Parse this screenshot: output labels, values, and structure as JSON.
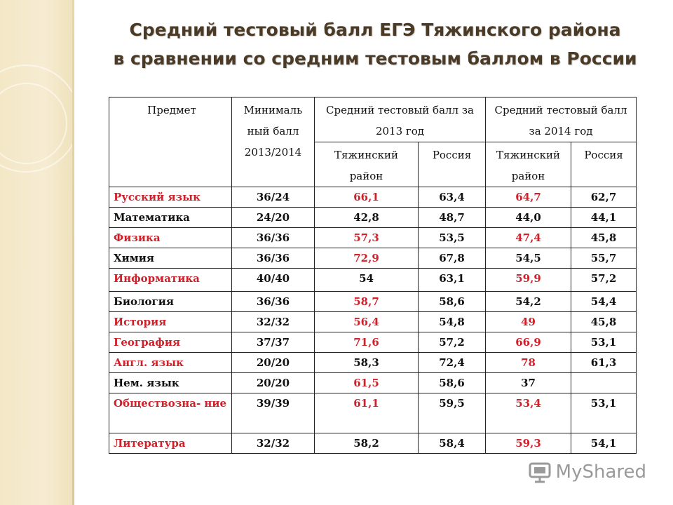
{
  "slide": {
    "title_line1": "Средний тестовый балл ЕГЭ Тяжинского района",
    "title_line2": "в сравнении со средним тестовым баллом в России"
  },
  "table": {
    "headers": {
      "subject": "Предмет",
      "minscore": "Минималь ный балл 2013/2014",
      "group2013": "Средний тестовый балл за 2013 год",
      "group2014": "Средний тестовый балл за 2014 год",
      "district": "Тяжинский район",
      "russia": "Россия"
    },
    "rows": [
      {
        "subject": "Русский язык",
        "min": "36/24",
        "d2013": "66,1",
        "r2013": "63,4",
        "d2014": "64,7",
        "r2014": "62,7",
        "subj_red": true,
        "d2013_red": true,
        "d2014_red": true
      },
      {
        "subject": "Математика",
        "min": "24/20",
        "d2013": "42,8",
        "r2013": "48,7",
        "d2014": "44,0",
        "r2014": "44,1",
        "subj_red": false,
        "d2013_red": false,
        "d2014_red": false
      },
      {
        "subject": "Физика",
        "min": "36/36",
        "d2013": "57,3",
        "r2013": "53,5",
        "d2014": "47,4",
        "r2014": "45,8",
        "subj_red": true,
        "d2013_red": true,
        "d2014_red": true
      },
      {
        "subject": "Химия",
        "min": "36/36",
        "d2013": "72,9",
        "r2013": "67,8",
        "d2014": "54,5",
        "r2014": "55,7",
        "subj_red": false,
        "d2013_red": true,
        "d2014_red": false
      },
      {
        "subject": "Информатика",
        "min": "40/40",
        "d2013": "54",
        "r2013": "63,1",
        "d2014": "59,9",
        "r2014": "57,2",
        "subj_red": true,
        "d2013_red": false,
        "d2014_red": true
      },
      {
        "subject": "Биология",
        "min": "36/36",
        "d2013": "58,7",
        "r2013": "58,6",
        "d2014": "54,2",
        "r2014": "54,4",
        "subj_red": false,
        "d2013_red": true,
        "d2014_red": false
      },
      {
        "subject": "История",
        "min": "32/32",
        "d2013": "56,4",
        "r2013": "54,8",
        "d2014": "49",
        "r2014": "45,8",
        "subj_red": true,
        "d2013_red": true,
        "d2014_red": true
      },
      {
        "subject": "География",
        "min": "37/37",
        "d2013": "71,6",
        "r2013": "57,2",
        "d2014": "66,9",
        "r2014": "53,1",
        "subj_red": true,
        "d2013_red": true,
        "d2014_red": true
      },
      {
        "subject": "Англ. язык",
        "min": "20/20",
        "d2013": "58,3",
        "r2013": "72,4",
        "d2014": "78",
        "r2014": "61,3",
        "subj_red": true,
        "d2013_red": false,
        "d2014_red": true
      },
      {
        "subject": "Нем. язык",
        "min": "20/20",
        "d2013": "61,5",
        "r2013": "58,6",
        "d2014": "37",
        "r2014": "",
        "subj_red": false,
        "d2013_red": true,
        "d2014_red": false
      },
      {
        "subject": "Обществозна- ние",
        "min": "39/39",
        "d2013": "61,1",
        "r2013": "59,5",
        "d2014": "53,4",
        "r2014": "53,1",
        "subj_red": true,
        "d2013_red": true,
        "d2014_red": true
      },
      {
        "subject": "Литература",
        "min": "32/32",
        "d2013": "58,2",
        "r2013": "58,4",
        "d2014": "59,3",
        "r2014": "54,1",
        "subj_red": true,
        "d2013_red": false,
        "d2014_red": true
      }
    ]
  },
  "watermark": {
    "text": "MyShared",
    "icon": "presentation-icon"
  },
  "colors": {
    "highlight": "#d0202a",
    "title": "#4a3a26",
    "sidebar": "#f3e7c6"
  }
}
